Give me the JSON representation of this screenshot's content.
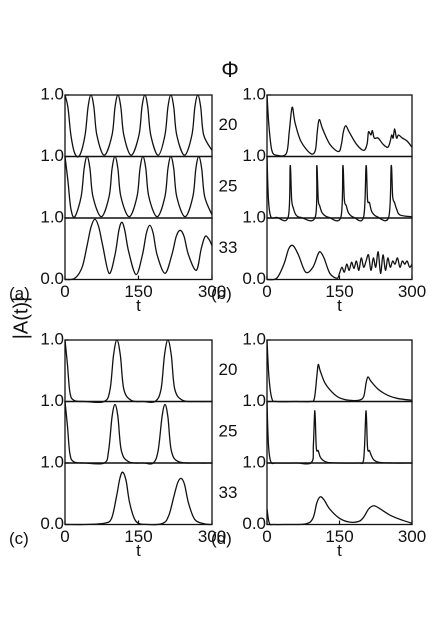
{
  "figure": {
    "title": "Φ",
    "ylabel": "|A(t)|"
  },
  "chart_data": [
    {
      "type": "line",
      "label": "(a)",
      "xlabel": "t",
      "color": "#111111",
      "xlim": [
        0,
        300
      ],
      "xticks": [
        0,
        150,
        300
      ],
      "ylim": [
        0,
        1
      ],
      "subplots": [
        {
          "name": "20",
          "yticks": [
            {
              "value": 1,
              "label": "1.0"
            }
          ],
          "x": [
            0,
            6,
            12,
            20,
            30,
            41,
            47,
            53,
            59,
            65,
            80,
            96,
            102,
            108,
            114,
            120,
            135,
            151,
            157,
            163,
            169,
            175,
            190,
            204,
            210,
            216,
            222,
            228,
            244,
            259,
            265,
            271,
            277,
            283,
            300
          ],
          "values": [
            1,
            0.8,
            0.35,
            0.05,
            0.02,
            0.35,
            0.8,
            1,
            0.8,
            0.35,
            0.02,
            0.35,
            0.8,
            1,
            0.8,
            0.35,
            0.02,
            0.35,
            0.8,
            1,
            0.8,
            0.35,
            0.02,
            0.35,
            0.8,
            1,
            0.8,
            0.35,
            0.02,
            0.35,
            0.8,
            1,
            0.8,
            0.35,
            0.1
          ]
        },
        {
          "name": "25",
          "yticks": [
            {
              "value": 1,
              "label": "1.0"
            }
          ],
          "x": [
            0,
            6,
            12,
            20,
            33,
            39,
            45,
            51,
            57,
            74,
            90,
            96,
            102,
            108,
            114,
            131,
            147,
            153,
            159,
            165,
            171,
            188,
            204,
            210,
            216,
            222,
            228,
            245,
            261,
            267,
            273,
            279,
            285,
            300
          ],
          "values": [
            1,
            0.6,
            0.15,
            0.02,
            0.35,
            0.8,
            1,
            0.8,
            0.35,
            0.02,
            0.35,
            0.8,
            1,
            0.8,
            0.35,
            0.02,
            0.35,
            0.8,
            1,
            0.8,
            0.35,
            0.02,
            0.35,
            0.8,
            1,
            0.8,
            0.35,
            0.02,
            0.35,
            0.8,
            1,
            0.8,
            0.35,
            0.05
          ]
        },
        {
          "name": "33",
          "yticks": [
            {
              "value": 0,
              "label": "0.0"
            },
            {
              "value": 1,
              "label": "1.0"
            }
          ],
          "x": [
            0,
            20,
            35,
            45,
            53,
            61,
            69,
            77,
            90,
            102,
            110,
            116,
            122,
            130,
            145,
            158,
            166,
            173,
            180,
            188,
            204,
            218,
            227,
            235,
            243,
            252,
            268,
            278,
            286,
            294,
            300
          ],
          "values": [
            0,
            0.02,
            0.2,
            0.55,
            0.85,
            0.98,
            0.85,
            0.55,
            0.1,
            0.4,
            0.8,
            0.93,
            0.8,
            0.45,
            0.08,
            0.4,
            0.75,
            0.88,
            0.75,
            0.4,
            0.1,
            0.4,
            0.7,
            0.8,
            0.7,
            0.4,
            0.15,
            0.5,
            0.7,
            0.65,
            0.55
          ]
        }
      ]
    },
    {
      "type": "line",
      "label": "(b)",
      "xlabel": "t",
      "color": "#111111",
      "xlim": [
        0,
        300
      ],
      "xticks": [
        0,
        150,
        300
      ],
      "ylim": [
        0,
        1
      ],
      "subplots": [
        {
          "yticks": [
            {
              "value": 1,
              "label": "1.0"
            }
          ],
          "x": [
            0,
            4,
            10,
            20,
            40,
            46,
            52,
            58,
            70,
            90,
            100,
            104,
            108,
            115,
            130,
            148,
            154,
            158,
            163,
            170,
            185,
            200,
            207,
            210,
            215,
            218,
            222,
            230,
            240,
            250,
            255,
            258,
            261,
            264,
            268,
            272,
            280,
            290,
            300
          ],
          "values": [
            1,
            0.5,
            0.1,
            0.02,
            0.05,
            0.4,
            0.8,
            0.55,
            0.25,
            0.05,
            0.1,
            0.4,
            0.6,
            0.45,
            0.2,
            0.08,
            0.2,
            0.4,
            0.5,
            0.4,
            0.2,
            0.1,
            0.2,
            0.4,
            0.35,
            0.42,
            0.3,
            0.3,
            0.2,
            0.15,
            0.25,
            0.35,
            0.3,
            0.45,
            0.3,
            0.35,
            0.3,
            0.25,
            0.15
          ]
        },
        {
          "yticks": [
            {
              "value": 1,
              "label": "1.0"
            }
          ],
          "x": [
            0,
            3,
            8,
            20,
            44,
            48,
            51,
            55,
            60,
            70,
            100,
            103,
            106,
            109,
            113,
            118,
            128,
            153,
            157,
            160,
            164,
            169,
            180,
            200,
            205,
            208,
            212,
            217,
            228,
            252,
            257,
            260,
            264,
            268,
            275,
            300
          ],
          "values": [
            1,
            0.3,
            0.02,
            0.01,
            0.02,
            0.85,
            0.3,
            0.15,
            0.05,
            0.01,
            0.02,
            0.85,
            0.3,
            0.2,
            0.1,
            0.05,
            0.01,
            0.02,
            0.85,
            0.3,
            0.2,
            0.08,
            0.01,
            0.02,
            0.85,
            0.3,
            0.25,
            0.1,
            0.02,
            0.02,
            0.85,
            0.35,
            0.25,
            0.15,
            0.05,
            0.02
          ]
        },
        {
          "yticks": [
            {
              "value": 0,
              "label": "0.0"
            },
            {
              "value": 1,
              "label": "1.0"
            }
          ],
          "x": [
            0,
            20,
            35,
            45,
            54,
            65,
            80,
            95,
            105,
            110,
            118,
            130,
            145,
            150,
            155,
            160,
            165,
            170,
            175,
            180,
            185,
            190,
            195,
            200,
            205,
            210,
            215,
            220,
            225,
            230,
            235,
            240,
            245,
            250,
            255,
            260,
            265,
            270,
            275,
            280,
            285,
            290,
            295,
            300
          ],
          "values": [
            0,
            0.02,
            0.25,
            0.5,
            0.55,
            0.4,
            0.12,
            0.2,
            0.4,
            0.45,
            0.35,
            0.1,
            0.02,
            0.1,
            0.2,
            0.12,
            0.25,
            0.15,
            0.28,
            0.18,
            0.3,
            0.15,
            0.35,
            0.2,
            0.3,
            0.4,
            0.15,
            0.35,
            0.2,
            0.45,
            0.1,
            0.4,
            0.15,
            0.35,
            0.2,
            0.3,
            0.25,
            0.35,
            0.2,
            0.3,
            0.25,
            0.3,
            0.2,
            0.25
          ]
        }
      ]
    },
    {
      "type": "line",
      "label": "(c)",
      "xlabel": "t",
      "color": "#111111",
      "xlim": [
        0,
        300
      ],
      "xticks": [
        0,
        150,
        300
      ],
      "ylim": [
        0,
        1
      ],
      "subplots": [
        {
          "name": "20",
          "yticks": [
            {
              "value": 1,
              "label": "1.0"
            }
          ],
          "x": [
            0,
            5,
            10,
            18,
            40,
            80,
            92,
            99,
            106,
            113,
            120,
            135,
            160,
            184,
            196,
            203,
            210,
            217,
            224,
            240,
            270,
            300
          ],
          "values": [
            1,
            0.6,
            0.15,
            0.02,
            0,
            0,
            0.2,
            0.75,
            1,
            0.75,
            0.2,
            0.02,
            0,
            0,
            0.2,
            0.75,
            1,
            0.75,
            0.2,
            0.02,
            0,
            0
          ]
        },
        {
          "name": "25",
          "yticks": [
            {
              "value": 1,
              "label": "1.0"
            }
          ],
          "x": [
            0,
            5,
            10,
            18,
            40,
            80,
            89,
            96,
            102,
            108,
            115,
            130,
            160,
            180,
            190,
            198,
            204,
            210,
            217,
            232,
            270,
            300
          ],
          "values": [
            1,
            0.6,
            0.15,
            0.02,
            0,
            0,
            0.2,
            0.75,
            0.95,
            0.75,
            0.2,
            0.02,
            0,
            0,
            0.2,
            0.75,
            0.95,
            0.75,
            0.2,
            0.02,
            0,
            0
          ]
        },
        {
          "name": "33",
          "yticks": [
            {
              "value": 0,
              "label": "0.0"
            },
            {
              "value": 1,
              "label": "1.0"
            }
          ],
          "x": [
            0,
            40,
            80,
            95,
            105,
            112,
            118,
            125,
            132,
            145,
            170,
            200,
            212,
            222,
            230,
            237,
            244,
            252,
            265,
            285,
            300
          ],
          "values": [
            0,
            0,
            0.02,
            0.1,
            0.45,
            0.75,
            0.85,
            0.7,
            0.35,
            0.05,
            0,
            0.02,
            0.15,
            0.45,
            0.68,
            0.75,
            0.65,
            0.35,
            0.08,
            0.01,
            0
          ]
        }
      ]
    },
    {
      "type": "line",
      "label": "(d)",
      "xlabel": "t",
      "color": "#111111",
      "xlim": [
        0,
        300
      ],
      "xticks": [
        0,
        150,
        300
      ],
      "ylim": [
        0,
        1
      ],
      "subplots": [
        {
          "yticks": [
            {
              "value": 1,
              "label": "1.0"
            }
          ],
          "x": [
            0,
            4,
            10,
            20,
            60,
            90,
            98,
            103,
            106,
            110,
            120,
            135,
            150,
            170,
            190,
            200,
            205,
            209,
            215,
            230,
            250,
            270,
            300
          ],
          "values": [
            1,
            0.4,
            0.05,
            0,
            0,
            0,
            0.05,
            0.4,
            0.6,
            0.5,
            0.3,
            0.15,
            0.06,
            0.02,
            0.02,
            0.08,
            0.3,
            0.4,
            0.33,
            0.2,
            0.1,
            0.05,
            0.02
          ]
        },
        {
          "yticks": [
            {
              "value": 1,
              "label": "1.0"
            }
          ],
          "x": [
            0,
            3,
            8,
            20,
            60,
            92,
            96,
            99,
            102,
            106,
            110,
            115,
            125,
            150,
            190,
            199,
            202,
            205,
            208,
            212,
            216,
            221,
            232,
            260,
            300
          ],
          "values": [
            1,
            0.3,
            0.02,
            0,
            0,
            0.01,
            0.3,
            0.85,
            0.25,
            0.2,
            0.1,
            0.05,
            0.01,
            0,
            0,
            0.02,
            0.3,
            0.85,
            0.25,
            0.2,
            0.12,
            0.05,
            0.01,
            0,
            0
          ]
        },
        {
          "yticks": [
            {
              "value": 0,
              "label": "0.0"
            },
            {
              "value": 1,
              "label": "1.0"
            }
          ],
          "x": [
            0,
            5,
            15,
            40,
            80,
            95,
            103,
            110,
            118,
            130,
            150,
            170,
            190,
            200,
            210,
            218,
            224,
            235,
            255,
            280,
            300
          ],
          "values": [
            0.25,
            0.02,
            0,
            0,
            0.01,
            0.1,
            0.35,
            0.45,
            0.4,
            0.25,
            0.1,
            0.04,
            0.05,
            0.12,
            0.25,
            0.3,
            0.3,
            0.25,
            0.15,
            0.07,
            0.02
          ]
        }
      ]
    }
  ]
}
